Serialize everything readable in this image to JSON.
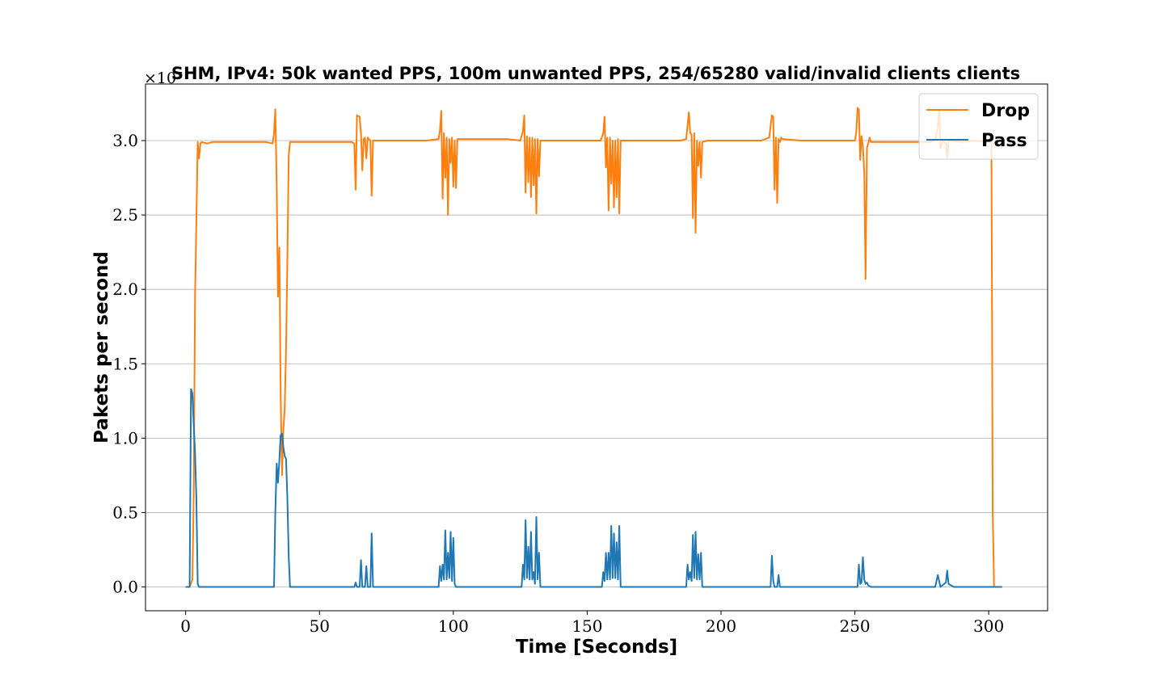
{
  "chart_data": {
    "type": "line",
    "title": "SHM, IPv4: 50k wanted PPS, 100m unwanted PPS, 254/65280 valid/invalid clients clients",
    "xlabel": "Time [Seconds]",
    "ylabel": "Pakets per second",
    "y_offset_text": "×10⁷",
    "xlim": [
      -15,
      322
    ],
    "ylim": [
      -0.16,
      3.38
    ],
    "x_ticks": [
      0,
      50,
      100,
      150,
      200,
      250,
      300
    ],
    "x_tick_labels": [
      "0",
      "50",
      "100",
      "150",
      "200",
      "250",
      "300"
    ],
    "y_ticks": [
      0.0,
      0.5,
      1.0,
      1.5,
      2.0,
      2.5,
      3.0
    ],
    "y_tick_labels": [
      "0.0",
      "0.5",
      "1.0",
      "1.5",
      "2.0",
      "2.5",
      "3.0"
    ],
    "grid": "horizontal",
    "legend_position": "top-right",
    "series": [
      {
        "name": "Drop",
        "color": "#ff7f0e",
        "points": [
          [
            0,
            0
          ],
          [
            1.5,
            0
          ],
          [
            2.5,
            0.05
          ],
          [
            3,
            0.6
          ],
          [
            3.5,
            1.95
          ],
          [
            4,
            2.45
          ],
          [
            4.5,
            2.99
          ],
          [
            5,
            2.88
          ],
          [
            5.5,
            2.98
          ],
          [
            6,
            2.99
          ],
          [
            8,
            2.98
          ],
          [
            10,
            2.99
          ],
          [
            15,
            2.99
          ],
          [
            20,
            2.99
          ],
          [
            25,
            2.99
          ],
          [
            30,
            2.99
          ],
          [
            32.5,
            2.98
          ],
          [
            33,
            3.05
          ],
          [
            33.5,
            3.21
          ],
          [
            34,
            2.7
          ],
          [
            34.5,
            1.95
          ],
          [
            35,
            2.28
          ],
          [
            35.5,
            1.3
          ],
          [
            36,
            0.75
          ],
          [
            36.5,
            1.05
          ],
          [
            37,
            1.2
          ],
          [
            37.5,
            1.6
          ],
          [
            38,
            2.2
          ],
          [
            38.5,
            2.9
          ],
          [
            39,
            2.99
          ],
          [
            45,
            2.99
          ],
          [
            50,
            2.99
          ],
          [
            55,
            2.99
          ],
          [
            62,
            2.99
          ],
          [
            63,
            2.98
          ],
          [
            63.5,
            2.67
          ],
          [
            64,
            3.17
          ],
          [
            65,
            3.16
          ],
          [
            65.5,
            3.05
          ],
          [
            66,
            2.8
          ],
          [
            66.5,
            3.01
          ],
          [
            67,
            3.02
          ],
          [
            67.5,
            2.88
          ],
          [
            68,
            3.02
          ],
          [
            69,
            3.0
          ],
          [
            69.5,
            2.63
          ],
          [
            70,
            3.0
          ],
          [
            75,
            3.0
          ],
          [
            80,
            3.0
          ],
          [
            85,
            3.0
          ],
          [
            90,
            3.0
          ],
          [
            94.5,
            3.01
          ],
          [
            95,
            3.07
          ],
          [
            95.5,
            3.2
          ],
          [
            96,
            2.61
          ],
          [
            96.5,
            3.05
          ],
          [
            97,
            2.75
          ],
          [
            97.5,
            3.02
          ],
          [
            98,
            2.5
          ],
          [
            98.5,
            3.01
          ],
          [
            99,
            2.85
          ],
          [
            99.5,
            3.02
          ],
          [
            100,
            2.69
          ],
          [
            100.5,
            3.0
          ],
          [
            101,
            2.68
          ],
          [
            101.5,
            3.01
          ],
          [
            105,
            3.01
          ],
          [
            110,
            3.01
          ],
          [
            115,
            3.01
          ],
          [
            120,
            3.01
          ],
          [
            125,
            3.0
          ],
          [
            126,
            3.06
          ],
          [
            126.5,
            3.17
          ],
          [
            127,
            2.65
          ],
          [
            127.5,
            3.03
          ],
          [
            128,
            2.72
          ],
          [
            128.5,
            3.02
          ],
          [
            129,
            2.62
          ],
          [
            129.5,
            3.02
          ],
          [
            130,
            2.7
          ],
          [
            130.5,
            3.01
          ],
          [
            131,
            2.51
          ],
          [
            131.5,
            3.01
          ],
          [
            132,
            2.76
          ],
          [
            132.5,
            3.0
          ],
          [
            135,
            3.0
          ],
          [
            140,
            3.0
          ],
          [
            145,
            3.0
          ],
          [
            150,
            3.0
          ],
          [
            155,
            3.0
          ],
          [
            156,
            3.05
          ],
          [
            156.5,
            3.16
          ],
          [
            157,
            2.82
          ],
          [
            157.5,
            3.02
          ],
          [
            158,
            2.53
          ],
          [
            158.5,
            3.02
          ],
          [
            159,
            2.71
          ],
          [
            159.5,
            3.0
          ],
          [
            160,
            2.55
          ],
          [
            160.5,
            3.0
          ],
          [
            161,
            2.62
          ],
          [
            161.5,
            3.01
          ],
          [
            162,
            2.51
          ],
          [
            162.5,
            3.0
          ],
          [
            165,
            3.0
          ],
          [
            170,
            3.0
          ],
          [
            175,
            3.0
          ],
          [
            180,
            3.0
          ],
          [
            185,
            3.0
          ],
          [
            187,
            3.01
          ],
          [
            188,
            3.19
          ],
          [
            188.5,
            3.05
          ],
          [
            189,
            3.04
          ],
          [
            189.5,
            2.48
          ],
          [
            190,
            3.05
          ],
          [
            190.5,
            2.38
          ],
          [
            191,
            3.0
          ],
          [
            191.5,
            2.83
          ],
          [
            192,
            2.99
          ],
          [
            192.5,
            2.75
          ],
          [
            193,
            2.99
          ],
          [
            195,
            3.0
          ],
          [
            200,
            3.0
          ],
          [
            205,
            3.0
          ],
          [
            210,
            3.0
          ],
          [
            215,
            3.0
          ],
          [
            218,
            3.02
          ],
          [
            219,
            3.17
          ],
          [
            219.5,
            3.16
          ],
          [
            220,
            2.67
          ],
          [
            220.5,
            3.02
          ],
          [
            221,
            2.58
          ],
          [
            221.5,
            3.01
          ],
          [
            222,
            2.99
          ],
          [
            222.5,
            3.02
          ],
          [
            223,
            3.01
          ],
          [
            230,
            3.0
          ],
          [
            235,
            3.0
          ],
          [
            240,
            3.0
          ],
          [
            245,
            3.0
          ],
          [
            250,
            3.0
          ],
          [
            250.5,
            3.05
          ],
          [
            251,
            3.22
          ],
          [
            251.5,
            3.21
          ],
          [
            252,
            2.87
          ],
          [
            252.5,
            3.03
          ],
          [
            253,
            2.96
          ],
          [
            253.5,
            2.78
          ],
          [
            254,
            2.07
          ],
          [
            254.5,
            2.95
          ],
          [
            255,
            2.98
          ],
          [
            255.5,
            3.02
          ],
          [
            256,
            2.99
          ],
          [
            260,
            2.99
          ],
          [
            265,
            2.99
          ],
          [
            270,
            2.99
          ],
          [
            275,
            2.99
          ],
          [
            278,
            2.99
          ],
          [
            280,
            3.0
          ],
          [
            281,
            3.1
          ],
          [
            281.5,
            3.2
          ],
          [
            282,
            2.95
          ],
          [
            283,
            3.0
          ],
          [
            284,
            2.98
          ],
          [
            284.5,
            2.88
          ],
          [
            285,
            3.0
          ],
          [
            290,
            2.99
          ],
          [
            295,
            3.0
          ],
          [
            300,
            2.99
          ],
          [
            301,
            2.99
          ],
          [
            301.5,
            0.5
          ],
          [
            302,
            0
          ]
        ]
      },
      {
        "name": "Pass",
        "color": "#1f77b4",
        "points": [
          [
            0,
            0
          ],
          [
            1.5,
            0
          ],
          [
            2,
            1.33
          ],
          [
            2.5,
            1.3
          ],
          [
            3,
            1.1
          ],
          [
            3.5,
            0.9
          ],
          [
            4,
            0.6
          ],
          [
            4.5,
            0.02
          ],
          [
            5,
            0
          ],
          [
            10,
            0
          ],
          [
            20,
            0
          ],
          [
            30,
            0
          ],
          [
            33,
            0
          ],
          [
            33.5,
            0.5
          ],
          [
            34,
            0.83
          ],
          [
            34.5,
            0.7
          ],
          [
            35,
            0.85
          ],
          [
            35.5,
            1.02
          ],
          [
            36,
            1.03
          ],
          [
            36.5,
            0.94
          ],
          [
            37,
            0.88
          ],
          [
            37.5,
            0.86
          ],
          [
            38,
            0.6
          ],
          [
            38.5,
            0.2
          ],
          [
            39,
            0
          ],
          [
            50,
            0
          ],
          [
            60,
            0
          ],
          [
            63,
            0
          ],
          [
            63.5,
            0.03
          ],
          [
            64,
            0
          ],
          [
            65,
            0
          ],
          [
            65.5,
            0.18
          ],
          [
            66,
            0
          ],
          [
            67,
            0
          ],
          [
            67.5,
            0.14
          ],
          [
            68,
            0
          ],
          [
            69,
            0
          ],
          [
            69.5,
            0.36
          ],
          [
            70,
            0
          ],
          [
            80,
            0
          ],
          [
            90,
            0
          ],
          [
            94.5,
            0
          ],
          [
            95,
            0.14
          ],
          [
            95.5,
            0.04
          ],
          [
            96,
            0.15
          ],
          [
            96.5,
            0.05
          ],
          [
            97,
            0.38
          ],
          [
            97.5,
            0.05
          ],
          [
            98,
            0.23
          ],
          [
            98.5,
            0.06
          ],
          [
            99,
            0.37
          ],
          [
            99.5,
            0.04
          ],
          [
            100,
            0.33
          ],
          [
            100.5,
            0.02
          ],
          [
            101,
            0
          ],
          [
            110,
            0
          ],
          [
            120,
            0
          ],
          [
            125.5,
            0
          ],
          [
            126,
            0.15
          ],
          [
            126.5,
            0.05
          ],
          [
            127,
            0.45
          ],
          [
            127.5,
            0.06
          ],
          [
            128,
            0.27
          ],
          [
            128.5,
            0.05
          ],
          [
            129,
            0.37
          ],
          [
            129.5,
            0.05
          ],
          [
            130,
            0.1
          ],
          [
            130.5,
            0.02
          ],
          [
            131,
            0.47
          ],
          [
            131.5,
            0.05
          ],
          [
            132,
            0.23
          ],
          [
            132.5,
            0
          ],
          [
            140,
            0
          ],
          [
            150,
            0
          ],
          [
            155.5,
            0
          ],
          [
            156,
            0.1
          ],
          [
            156.5,
            0.04
          ],
          [
            157,
            0.23
          ],
          [
            157.5,
            0.05
          ],
          [
            158,
            0.23
          ],
          [
            158.5,
            0.05
          ],
          [
            159,
            0.41
          ],
          [
            159.5,
            0.06
          ],
          [
            160,
            0.36
          ],
          [
            160.5,
            0.06
          ],
          [
            161,
            0.3
          ],
          [
            161.5,
            0.05
          ],
          [
            162,
            0.41
          ],
          [
            162.5,
            0
          ],
          [
            170,
            0
          ],
          [
            180,
            0
          ],
          [
            187,
            0
          ],
          [
            187.5,
            0.15
          ],
          [
            188,
            0.05
          ],
          [
            188.5,
            0.1
          ],
          [
            189,
            0.04
          ],
          [
            189.5,
            0.35
          ],
          [
            190,
            0.06
          ],
          [
            190.5,
            0.37
          ],
          [
            191,
            0.05
          ],
          [
            191.5,
            0.22
          ],
          [
            192,
            0.05
          ],
          [
            192.5,
            0.23
          ],
          [
            193,
            0
          ],
          [
            200,
            0
          ],
          [
            210,
            0
          ],
          [
            218.5,
            0
          ],
          [
            219,
            0.21
          ],
          [
            219.5,
            0.04
          ],
          [
            220,
            0
          ],
          [
            221,
            0
          ],
          [
            221.5,
            0.08
          ],
          [
            222,
            0
          ],
          [
            230,
            0
          ],
          [
            240,
            0
          ],
          [
            250,
            0
          ],
          [
            251,
            0
          ],
          [
            251.5,
            0.15
          ],
          [
            252,
            0.02
          ],
          [
            252.5,
            0.03
          ],
          [
            253,
            0.2
          ],
          [
            253.5,
            0.05
          ],
          [
            254,
            0.02
          ],
          [
            254.5,
            0.03
          ],
          [
            255,
            0.01
          ],
          [
            256,
            0
          ],
          [
            260,
            0
          ],
          [
            270,
            0
          ],
          [
            280,
            0
          ],
          [
            281,
            0.08
          ],
          [
            282,
            0
          ],
          [
            284,
            0.03
          ],
          [
            284.5,
            0.11
          ],
          [
            285,
            0.02
          ],
          [
            286,
            0.01
          ],
          [
            287,
            0
          ],
          [
            290,
            0
          ],
          [
            300,
            0
          ],
          [
            305,
            0
          ]
        ]
      }
    ]
  }
}
